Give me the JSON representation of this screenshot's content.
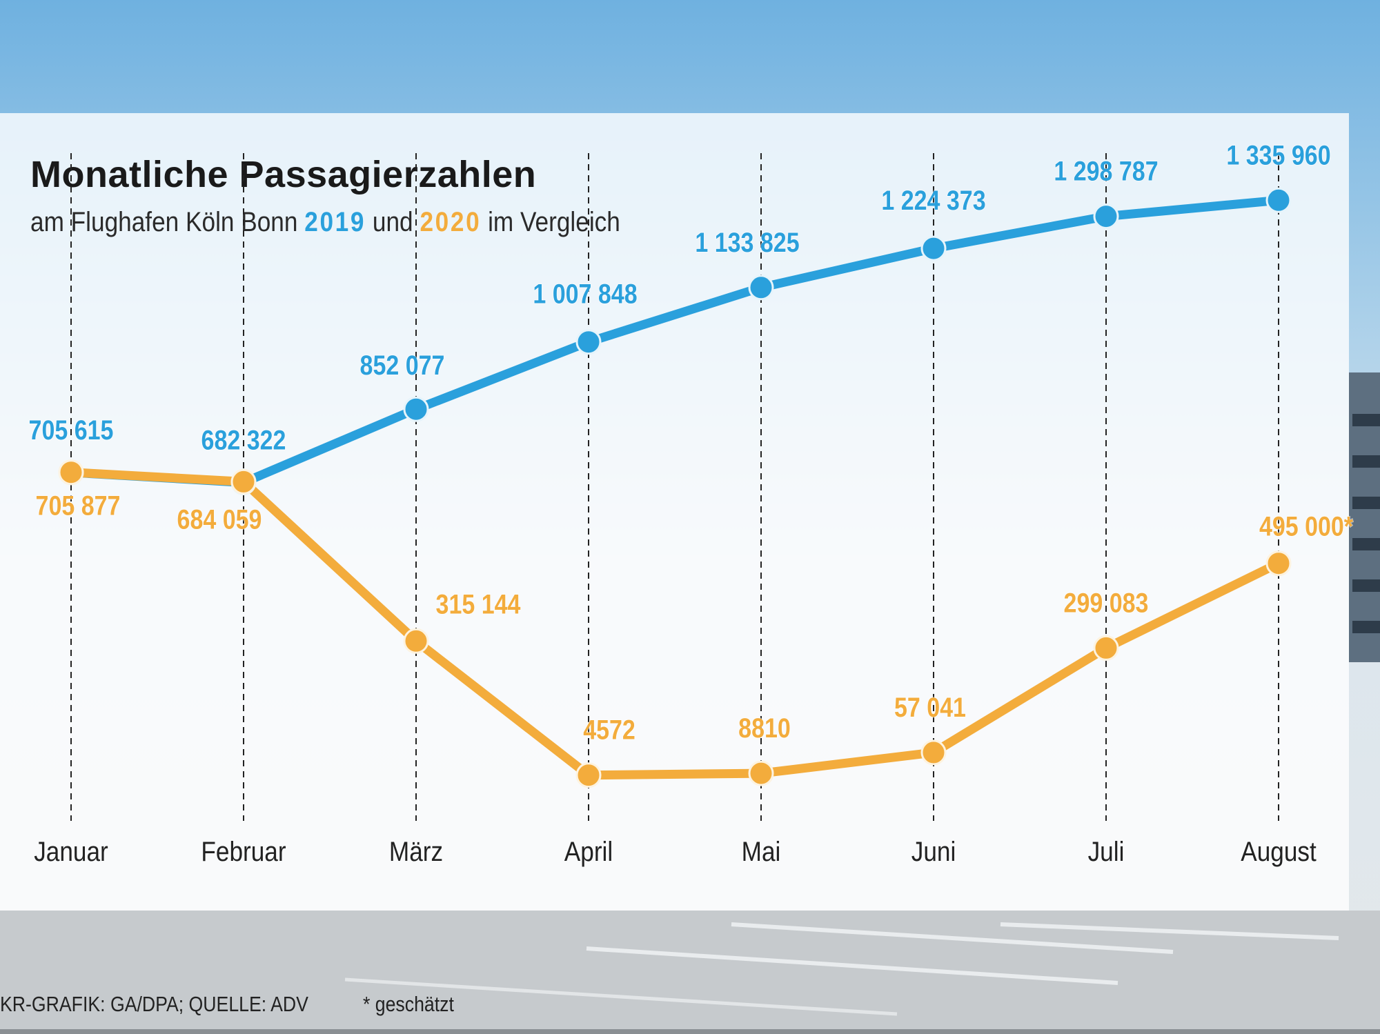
{
  "header": {
    "title": "Monatliche Passagierzahlen",
    "subtitle_pre": "am Flughafen Köln Bonn",
    "subtitle_mid": "und",
    "subtitle_post": "im Vergleich",
    "year_a": "2019",
    "year_b": "2020"
  },
  "footer": {
    "credit": "KR-GRAFIK: GA/DPA; QUELLE: ADV",
    "note": "* geschätzt"
  },
  "colors": {
    "series_2019": "#2aa0dc",
    "series_2020": "#f3ac3c"
  },
  "chart_data": {
    "type": "line",
    "title": "Monatliche Passagierzahlen",
    "categories": [
      "Januar",
      "Februar",
      "März",
      "April",
      "Mai",
      "Juni",
      "Juli",
      "August"
    ],
    "ylim": [
      0,
      1400000
    ],
    "grid": "vertical dashed",
    "series": [
      {
        "name": "2019",
        "values": [
          705615,
          682322,
          852077,
          1007848,
          1133825,
          1224373,
          1298787,
          1335960
        ],
        "labels": [
          "705 615",
          "682 322",
          "852 077",
          "1 007 848",
          "1 133 825",
          "1 224 373",
          "1 298 787",
          "1 335 960"
        ]
      },
      {
        "name": "2020",
        "values": [
          705877,
          684059,
          315144,
          4572,
          8810,
          57041,
          299083,
          495000
        ],
        "labels": [
          "705 877",
          "684 059",
          "315 144",
          "4572",
          "8810",
          "57 041",
          "299 083",
          "495 000*"
        ]
      }
    ]
  }
}
